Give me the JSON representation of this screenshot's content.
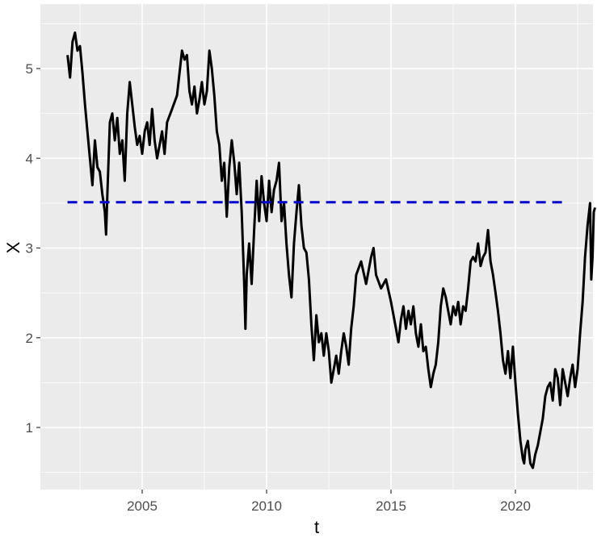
{
  "chart_data": {
    "type": "line",
    "xlabel": "t",
    "ylabel": "X",
    "xlim": [
      2001.6,
      2022.7
    ],
    "ylim": [
      0.35,
      5.6
    ],
    "x_ticks": [
      2005,
      2010,
      2015,
      2020
    ],
    "x_tick_labels": [
      "2005",
      "2010",
      "2015",
      "2020"
    ],
    "y_ticks": [
      1,
      2,
      3,
      4,
      5
    ],
    "y_tick_labels": [
      "1",
      "2",
      "3",
      "4",
      "5"
    ],
    "grid": true,
    "background": "#ebebeb",
    "reference_line": {
      "y": 3.51,
      "x_start": 2002.0,
      "x_end": 2021.9,
      "color": "#0000cc",
      "style": "dashed"
    },
    "series": [
      {
        "color": "#000000",
        "points": [
          [
            2002.0,
            5.15
          ],
          [
            2002.1,
            4.9
          ],
          [
            2002.2,
            5.3
          ],
          [
            2002.3,
            5.4
          ],
          [
            2002.4,
            5.2
          ],
          [
            2002.5,
            5.25
          ],
          [
            2002.6,
            4.95
          ],
          [
            2002.7,
            4.6
          ],
          [
            2002.8,
            4.3
          ],
          [
            2002.9,
            4.0
          ],
          [
            2003.0,
            3.7
          ],
          [
            2003.1,
            4.2
          ],
          [
            2003.2,
            3.9
          ],
          [
            2003.3,
            3.85
          ],
          [
            2003.4,
            3.6
          ],
          [
            2003.5,
            3.4
          ],
          [
            2003.55,
            3.15
          ],
          [
            2003.6,
            3.6
          ],
          [
            2003.7,
            4.4
          ],
          [
            2003.8,
            4.5
          ],
          [
            2003.9,
            4.2
          ],
          [
            2004.0,
            4.45
          ],
          [
            2004.1,
            4.05
          ],
          [
            2004.2,
            4.2
          ],
          [
            2004.3,
            3.75
          ],
          [
            2004.4,
            4.5
          ],
          [
            2004.5,
            4.85
          ],
          [
            2004.6,
            4.6
          ],
          [
            2004.7,
            4.35
          ],
          [
            2004.8,
            4.15
          ],
          [
            2004.9,
            4.25
          ],
          [
            2005.0,
            4.05
          ],
          [
            2005.1,
            4.3
          ],
          [
            2005.2,
            4.4
          ],
          [
            2005.3,
            4.15
          ],
          [
            2005.4,
            4.55
          ],
          [
            2005.5,
            4.2
          ],
          [
            2005.6,
            4.0
          ],
          [
            2005.7,
            4.15
          ],
          [
            2005.8,
            4.3
          ],
          [
            2005.9,
            4.05
          ],
          [
            2006.0,
            4.4
          ],
          [
            2006.2,
            4.55
          ],
          [
            2006.4,
            4.7
          ],
          [
            2006.5,
            4.95
          ],
          [
            2006.6,
            5.2
          ],
          [
            2006.7,
            5.1
          ],
          [
            2006.8,
            5.15
          ],
          [
            2006.9,
            4.75
          ],
          [
            2007.0,
            4.6
          ],
          [
            2007.1,
            4.8
          ],
          [
            2007.2,
            4.5
          ],
          [
            2007.3,
            4.65
          ],
          [
            2007.4,
            4.85
          ],
          [
            2007.5,
            4.6
          ],
          [
            2007.6,
            4.75
          ],
          [
            2007.7,
            5.2
          ],
          [
            2007.8,
            5.0
          ],
          [
            2007.9,
            4.7
          ],
          [
            2008.0,
            4.3
          ],
          [
            2008.1,
            4.15
          ],
          [
            2008.2,
            3.75
          ],
          [
            2008.3,
            3.95
          ],
          [
            2008.4,
            3.35
          ],
          [
            2008.5,
            3.9
          ],
          [
            2008.6,
            4.2
          ],
          [
            2008.7,
            3.95
          ],
          [
            2008.8,
            3.6
          ],
          [
            2008.9,
            3.95
          ],
          [
            2009.0,
            3.4
          ],
          [
            2009.1,
            2.6
          ],
          [
            2009.15,
            2.1
          ],
          [
            2009.2,
            2.7
          ],
          [
            2009.3,
            3.05
          ],
          [
            2009.4,
            2.6
          ],
          [
            2009.5,
            3.2
          ],
          [
            2009.6,
            3.75
          ],
          [
            2009.7,
            3.3
          ],
          [
            2009.8,
            3.8
          ],
          [
            2009.9,
            3.5
          ],
          [
            2010.0,
            3.3
          ],
          [
            2010.1,
            3.75
          ],
          [
            2010.2,
            3.4
          ],
          [
            2010.3,
            3.65
          ],
          [
            2010.4,
            3.75
          ],
          [
            2010.5,
            3.95
          ],
          [
            2010.6,
            3.3
          ],
          [
            2010.7,
            3.5
          ],
          [
            2010.8,
            3.05
          ],
          [
            2010.9,
            2.7
          ],
          [
            2011.0,
            2.45
          ],
          [
            2011.1,
            3.05
          ],
          [
            2011.2,
            3.4
          ],
          [
            2011.3,
            3.7
          ],
          [
            2011.4,
            3.25
          ],
          [
            2011.5,
            3.0
          ],
          [
            2011.6,
            2.95
          ],
          [
            2011.7,
            2.65
          ],
          [
            2011.8,
            2.15
          ],
          [
            2011.9,
            1.75
          ],
          [
            2012.0,
            2.25
          ],
          [
            2012.1,
            1.95
          ],
          [
            2012.2,
            2.05
          ],
          [
            2012.3,
            1.8
          ],
          [
            2012.4,
            2.05
          ],
          [
            2012.5,
            1.85
          ],
          [
            2012.6,
            1.5
          ],
          [
            2012.7,
            1.65
          ],
          [
            2012.8,
            1.8
          ],
          [
            2012.9,
            1.6
          ],
          [
            2013.0,
            1.85
          ],
          [
            2013.1,
            2.05
          ],
          [
            2013.2,
            1.9
          ],
          [
            2013.3,
            1.7
          ],
          [
            2013.4,
            2.1
          ],
          [
            2013.5,
            2.35
          ],
          [
            2013.6,
            2.7
          ],
          [
            2013.8,
            2.85
          ],
          [
            2014.0,
            2.6
          ],
          [
            2014.2,
            2.9
          ],
          [
            2014.3,
            3.0
          ],
          [
            2014.4,
            2.7
          ],
          [
            2014.6,
            2.55
          ],
          [
            2014.8,
            2.65
          ],
          [
            2015.0,
            2.4
          ],
          [
            2015.1,
            2.25
          ],
          [
            2015.2,
            2.1
          ],
          [
            2015.3,
            1.95
          ],
          [
            2015.4,
            2.2
          ],
          [
            2015.5,
            2.35
          ],
          [
            2015.6,
            2.1
          ],
          [
            2015.7,
            2.3
          ],
          [
            2015.8,
            2.15
          ],
          [
            2015.9,
            2.35
          ],
          [
            2016.0,
            2.05
          ],
          [
            2016.1,
            1.9
          ],
          [
            2016.2,
            2.15
          ],
          [
            2016.3,
            1.85
          ],
          [
            2016.4,
            1.9
          ],
          [
            2016.5,
            1.65
          ],
          [
            2016.6,
            1.45
          ],
          [
            2016.7,
            1.6
          ],
          [
            2016.8,
            1.7
          ],
          [
            2016.9,
            1.95
          ],
          [
            2017.0,
            2.35
          ],
          [
            2017.1,
            2.55
          ],
          [
            2017.2,
            2.45
          ],
          [
            2017.3,
            2.3
          ],
          [
            2017.4,
            2.15
          ],
          [
            2017.5,
            2.35
          ],
          [
            2017.6,
            2.25
          ],
          [
            2017.7,
            2.4
          ],
          [
            2017.8,
            2.15
          ],
          [
            2017.9,
            2.35
          ],
          [
            2018.0,
            2.3
          ],
          [
            2018.1,
            2.55
          ],
          [
            2018.2,
            2.85
          ],
          [
            2018.3,
            2.9
          ],
          [
            2018.4,
            2.85
          ],
          [
            2018.5,
            3.05
          ],
          [
            2018.6,
            2.8
          ],
          [
            2018.7,
            2.9
          ],
          [
            2018.8,
            2.95
          ],
          [
            2018.9,
            3.2
          ],
          [
            2019.0,
            2.85
          ],
          [
            2019.1,
            2.7
          ],
          [
            2019.2,
            2.5
          ],
          [
            2019.3,
            2.3
          ],
          [
            2019.4,
            2.05
          ],
          [
            2019.5,
            1.75
          ],
          [
            2019.6,
            1.6
          ],
          [
            2019.7,
            1.85
          ],
          [
            2019.8,
            1.55
          ],
          [
            2019.9,
            1.9
          ],
          [
            2020.0,
            1.5
          ],
          [
            2020.1,
            1.15
          ],
          [
            2020.2,
            0.85
          ],
          [
            2020.3,
            0.65
          ],
          [
            2020.35,
            0.6
          ],
          [
            2020.4,
            0.75
          ],
          [
            2020.5,
            0.85
          ],
          [
            2020.6,
            0.6
          ],
          [
            2020.7,
            0.55
          ],
          [
            2020.8,
            0.7
          ],
          [
            2020.9,
            0.8
          ],
          [
            2021.0,
            0.95
          ],
          [
            2021.1,
            1.1
          ],
          [
            2021.2,
            1.35
          ],
          [
            2021.3,
            1.45
          ],
          [
            2021.4,
            1.5
          ],
          [
            2021.5,
            1.3
          ],
          [
            2021.6,
            1.65
          ],
          [
            2021.7,
            1.55
          ],
          [
            2021.8,
            1.25
          ],
          [
            2021.9,
            1.65
          ],
          [
            2022.0,
            1.5
          ],
          [
            2022.1,
            1.35
          ],
          [
            2022.2,
            1.55
          ],
          [
            2022.3,
            1.7
          ],
          [
            2022.4,
            1.45
          ],
          [
            2022.5,
            1.65
          ],
          [
            2022.6,
            2.05
          ],
          [
            2022.7,
            2.4
          ],
          [
            2022.8,
            2.9
          ],
          [
            2022.9,
            3.25
          ],
          [
            2023.0,
            3.5
          ],
          [
            2023.05,
            2.65
          ],
          [
            2023.1,
            2.9
          ],
          [
            2023.15,
            3.4
          ],
          [
            2023.2,
            3.45
          ]
        ]
      }
    ]
  }
}
